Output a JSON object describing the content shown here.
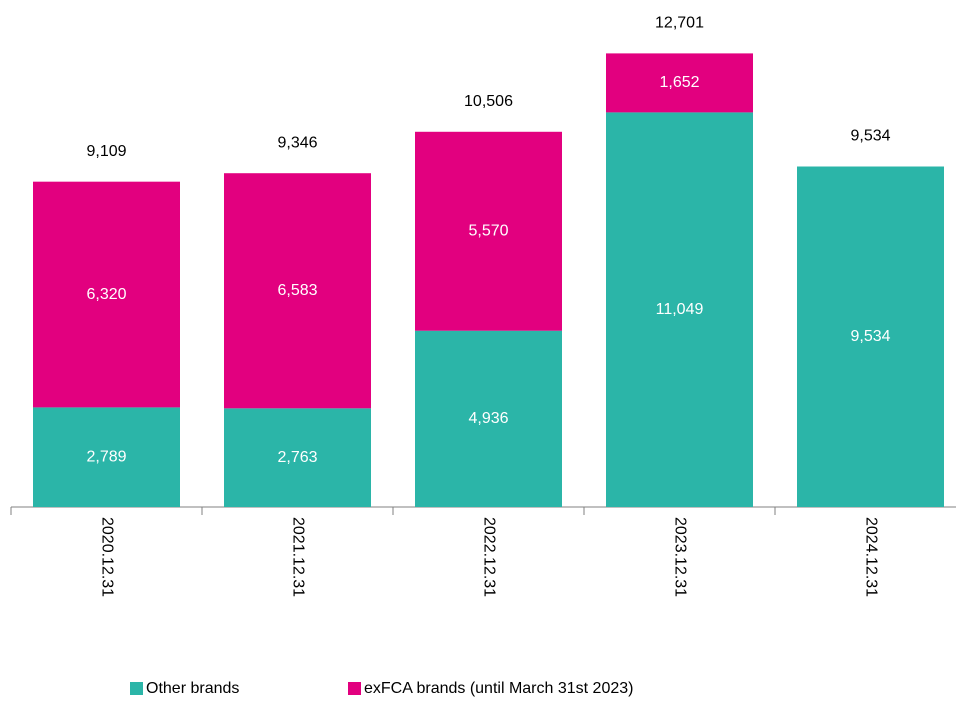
{
  "chart_data": {
    "type": "stacked_bar",
    "categories": [
      "2020.12.31",
      "2021.12.31",
      "2022.12.31",
      "2023.12.31",
      "2024.12.31"
    ],
    "series": [
      {
        "name": "Other brands",
        "color": "#2bb5a8",
        "values": [
          2789,
          2763,
          4936,
          11049,
          9534
        ],
        "value_labels": [
          "2,789",
          "2,763",
          "4,936",
          "11,049",
          "9,534"
        ]
      },
      {
        "name": "exFCA brands (until March 31st 2023)",
        "color": "#e2007f",
        "values": [
          6320,
          6583,
          5570,
          1652,
          null
        ],
        "value_labels": [
          "6,320",
          "6,583",
          "5,570",
          "1,652",
          null
        ]
      }
    ],
    "totals": [
      9109,
      9346,
      10506,
      12701,
      9534
    ],
    "total_labels": [
      "9,109",
      "9,346",
      "10,506",
      "12,701",
      "9,534"
    ],
    "ylim": [
      0,
      14000
    ],
    "legend": "bottom"
  }
}
